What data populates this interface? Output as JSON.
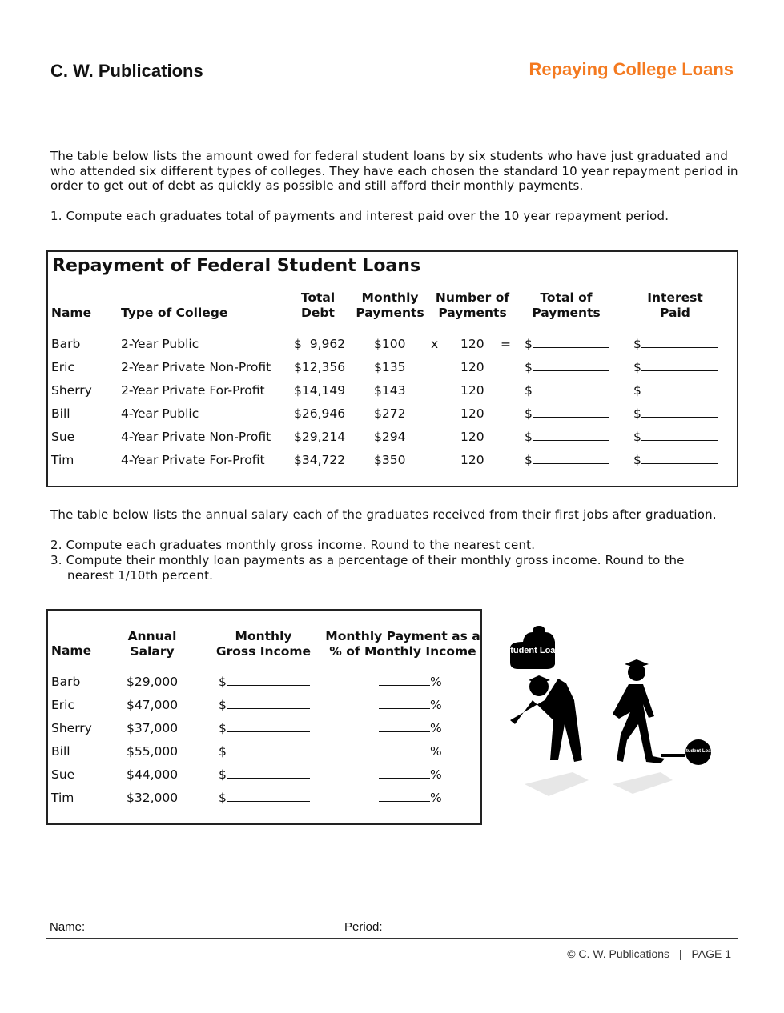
{
  "header": {
    "publisher": "C. W. Publications",
    "title": "Repaying College Loans",
    "accent_color": "#f47a20"
  },
  "intro": "The table below lists the amount owed for federal student loans by six students who have just graduated and who attended six different types of colleges. They have each chosen the standard 10 year repayment period in order to get out of debt as quickly as possible and still afford their monthly payments.",
  "question1": "1. Compute each graduates total of payments and interest paid over the 10 year repayment period.",
  "table1": {
    "title": "Repayment of Federal Student Loans",
    "headers": {
      "name": "Name",
      "type": "Type of College",
      "debt": "Total\nDebt",
      "monthly": "Monthly\nPayments",
      "number": "Number of\nPayments",
      "total": "Total of\nPayments",
      "interest": "Interest\nPaid"
    },
    "times": "x",
    "equals": "=",
    "dollar": "$",
    "rows": [
      {
        "name": "Barb",
        "type": "2-Year Public",
        "debt": "$  9,962",
        "monthly": "$100",
        "number": "120"
      },
      {
        "name": "Eric",
        "type": "2-Year Private Non-Profit",
        "debt": "$12,356",
        "monthly": "$135",
        "number": "120"
      },
      {
        "name": "Sherry",
        "type": "2-Year Private For-Profit",
        "debt": "$14,149",
        "monthly": "$143",
        "number": "120"
      },
      {
        "name": "Bill",
        "type": "4-Year Public",
        "debt": "$26,946",
        "monthly": "$272",
        "number": "120"
      },
      {
        "name": "Sue",
        "type": "4-Year Private Non-Profit",
        "debt": "$29,214",
        "monthly": "$294",
        "number": "120"
      },
      {
        "name": "Tim",
        "type": "4-Year Private For-Profit",
        "debt": "$34,722",
        "monthly": "$350",
        "number": "120"
      }
    ]
  },
  "intro2": "The table below lists the annual salary each of the graduates received from their first jobs after graduation.",
  "question2": "2. Compute each graduates monthly gross income. Round to the nearest cent.",
  "question3": "3. Compute their monthly loan payments as a percentage of their monthly gross income. Round to the nearest 1/10th percent.",
  "table2": {
    "headers": {
      "name": "Name",
      "salary": "Annual\nSalary",
      "gross": "Monthly\nGross Income",
      "pct": "Monthly Payment as a\n% of Monthly Income"
    },
    "dollar": "$",
    "percent": "%",
    "rows": [
      {
        "name": "Barb",
        "salary": "$29,000"
      },
      {
        "name": "Eric",
        "salary": "$47,000"
      },
      {
        "name": "Sherry",
        "salary": "$37,000"
      },
      {
        "name": "Bill",
        "salary": "$55,000"
      },
      {
        "name": "Sue",
        "salary": "$44,000"
      },
      {
        "name": "Tim",
        "salary": "$32,000"
      }
    ]
  },
  "illustration": {
    "bag_label": "Student Loan",
    "ball_label": "Student Loan"
  },
  "footer": {
    "name_label": "Name:",
    "period_label": "Period:",
    "copyright": "© C. W. Publications",
    "separator": "|",
    "page": "PAGE 1"
  }
}
